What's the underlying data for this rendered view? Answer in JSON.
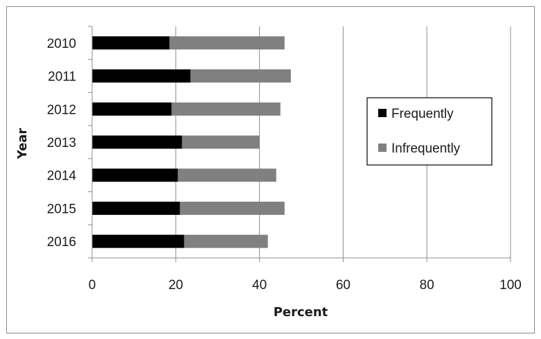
{
  "chart_data": {
    "type": "bar",
    "orientation": "horizontal",
    "stacked": true,
    "categories": [
      "2010",
      "2011",
      "2012",
      "2013",
      "2014",
      "2015",
      "2016"
    ],
    "series": [
      {
        "name": "Frequently",
        "values": [
          18.5,
          23.5,
          19,
          21.5,
          20.5,
          21,
          22
        ],
        "color": "#000000"
      },
      {
        "name": "Infrequently",
        "values": [
          27.5,
          24,
          26,
          18.5,
          23.5,
          25,
          20
        ],
        "color": "#808080"
      }
    ],
    "xlabel": "Percent",
    "ylabel": "Year",
    "xlim": [
      0,
      100
    ],
    "xticks": [
      "0",
      "20",
      "40",
      "60",
      "80",
      "100"
    ],
    "grid": "vertical",
    "legend_position": "right"
  }
}
